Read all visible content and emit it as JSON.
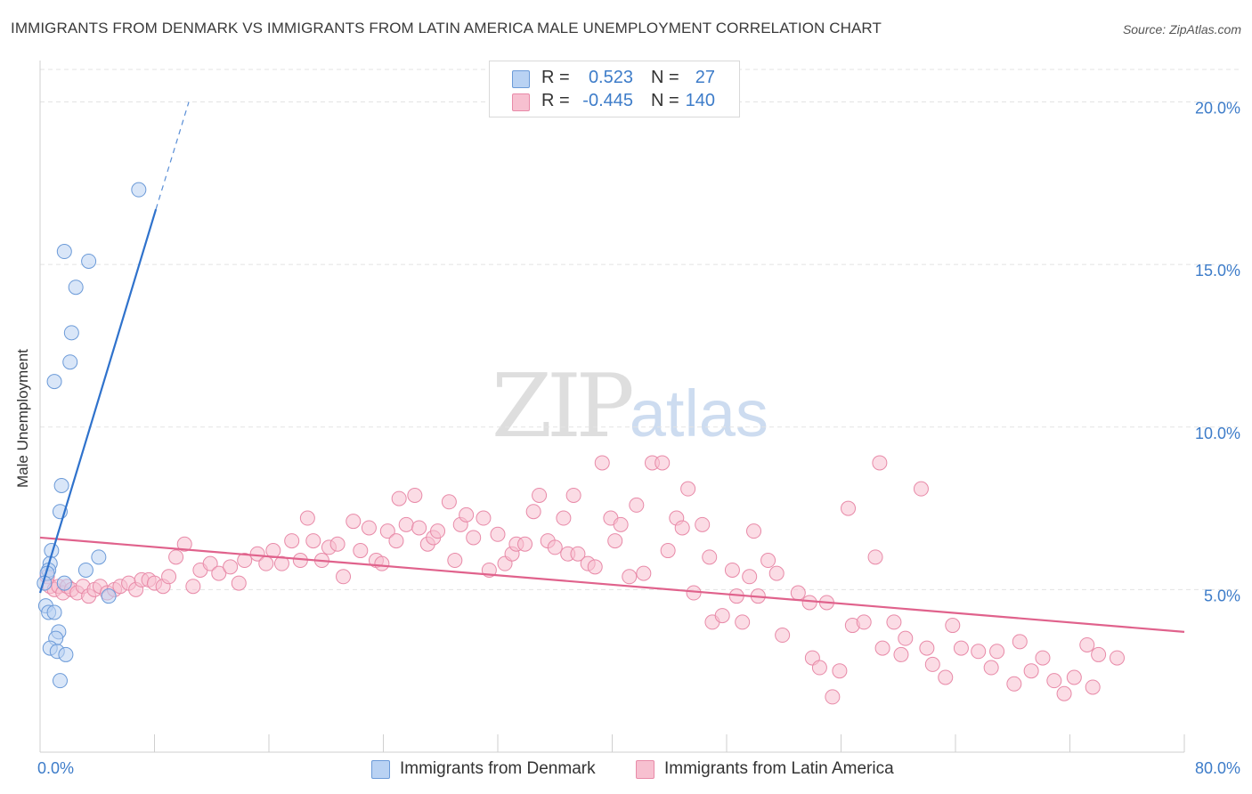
{
  "title": "IMMIGRANTS FROM DENMARK VS IMMIGRANTS FROM LATIN AMERICA MALE UNEMPLOYMENT CORRELATION CHART",
  "source": "Source: ZipAtlas.com",
  "watermark": {
    "zip": "ZIP",
    "atlas": "atlas"
  },
  "legend": {
    "rows": [
      {
        "r_label": "R =",
        "r_value": "0.523",
        "n_label": "N =",
        "n_value": "27"
      },
      {
        "r_label": "R =",
        "r_value": "-0.445",
        "n_label": "N =",
        "n_value": "140"
      }
    ]
  },
  "colors": {
    "denmark_fill": "#b9d2f3",
    "denmark_stroke": "#6b9ad8",
    "denmark_line": "#2f72cc",
    "latam_fill": "#f7c0d0",
    "latam_stroke": "#e88aa8",
    "latam_line": "#e0628c",
    "axis_text": "#3d7cc9",
    "grid": "#e3e3e3"
  },
  "chart_data": {
    "type": "scatter",
    "title": "IMMIGRANTS FROM DENMARK VS IMMIGRANTS FROM LATIN AMERICA MALE UNEMPLOYMENT CORRELATION CHART",
    "xlabel": "",
    "ylabel": "Male Unemployment",
    "xlim": [
      0,
      80
    ],
    "ylim": [
      0,
      21
    ],
    "x_tick_labels": [
      "0.0%",
      "80.0%"
    ],
    "y_ticks": [
      5,
      10,
      15,
      20
    ],
    "y_tick_labels": [
      "5.0%",
      "10.0%",
      "15.0%",
      "20.0%"
    ],
    "grid": true,
    "series": [
      {
        "name": "Immigrants from Denmark",
        "r": 0.523,
        "n": 27,
        "trend": {
          "x0": 0.0,
          "y0": 4.9,
          "x1": 8.1,
          "y1": 16.7,
          "dash_x1": 10.4,
          "dash_y1": 20.0
        },
        "points": [
          [
            6.9,
            17.3
          ],
          [
            1.7,
            15.4
          ],
          [
            3.4,
            15.1
          ],
          [
            2.5,
            14.3
          ],
          [
            2.2,
            12.9
          ],
          [
            2.1,
            12.0
          ],
          [
            1.0,
            11.4
          ],
          [
            1.5,
            8.2
          ],
          [
            1.4,
            7.4
          ],
          [
            0.8,
            6.2
          ],
          [
            4.1,
            6.0
          ],
          [
            0.7,
            5.8
          ],
          [
            3.2,
            5.6
          ],
          [
            0.6,
            5.6
          ],
          [
            0.5,
            5.5
          ],
          [
            0.3,
            5.2
          ],
          [
            1.7,
            5.2
          ],
          [
            4.8,
            4.8
          ],
          [
            0.4,
            4.5
          ],
          [
            0.6,
            4.3
          ],
          [
            1.0,
            4.3
          ],
          [
            1.3,
            3.7
          ],
          [
            1.1,
            3.5
          ],
          [
            0.7,
            3.2
          ],
          [
            1.2,
            3.1
          ],
          [
            1.8,
            3.0
          ],
          [
            1.4,
            2.2
          ]
        ]
      },
      {
        "name": "Immigrants from Latin America",
        "r": -0.445,
        "n": 140,
        "trend": {
          "x0": 0.0,
          "y0": 6.6,
          "x1": 80.0,
          "y1": 3.7
        },
        "points": [
          [
            0.5,
            5.4
          ],
          [
            0.7,
            5.1
          ],
          [
            1.0,
            5.0
          ],
          [
            1.3,
            5.1
          ],
          [
            1.6,
            4.9
          ],
          [
            1.9,
            5.1
          ],
          [
            2.2,
            5.0
          ],
          [
            2.6,
            4.9
          ],
          [
            3.0,
            5.1
          ],
          [
            3.4,
            4.8
          ],
          [
            3.8,
            5.0
          ],
          [
            4.2,
            5.1
          ],
          [
            4.7,
            4.9
          ],
          [
            5.2,
            5.0
          ],
          [
            5.6,
            5.1
          ],
          [
            6.2,
            5.2
          ],
          [
            6.7,
            5.0
          ],
          [
            7.1,
            5.3
          ],
          [
            7.6,
            5.3
          ],
          [
            8.0,
            5.2
          ],
          [
            8.6,
            5.1
          ],
          [
            9.0,
            5.4
          ],
          [
            9.5,
            6.0
          ],
          [
            10.1,
            6.4
          ],
          [
            10.7,
            5.1
          ],
          [
            11.2,
            5.6
          ],
          [
            11.9,
            5.8
          ],
          [
            12.5,
            5.5
          ],
          [
            13.3,
            5.7
          ],
          [
            13.9,
            5.2
          ],
          [
            14.3,
            5.9
          ],
          [
            15.2,
            6.1
          ],
          [
            15.8,
            5.8
          ],
          [
            16.3,
            6.2
          ],
          [
            16.9,
            5.8
          ],
          [
            17.6,
            6.5
          ],
          [
            18.2,
            5.9
          ],
          [
            18.7,
            7.2
          ],
          [
            19.1,
            6.5
          ],
          [
            19.7,
            5.9
          ],
          [
            20.2,
            6.3
          ],
          [
            20.8,
            6.4
          ],
          [
            21.2,
            5.4
          ],
          [
            21.9,
            7.1
          ],
          [
            22.4,
            6.2
          ],
          [
            23.0,
            6.9
          ],
          [
            23.5,
            5.9
          ],
          [
            23.9,
            5.8
          ],
          [
            24.3,
            6.8
          ],
          [
            24.9,
            6.5
          ],
          [
            25.1,
            7.8
          ],
          [
            25.6,
            7.0
          ],
          [
            26.2,
            7.9
          ],
          [
            26.5,
            6.9
          ],
          [
            27.1,
            6.4
          ],
          [
            27.5,
            6.6
          ],
          [
            27.8,
            6.8
          ],
          [
            28.6,
            7.7
          ],
          [
            29.0,
            5.9
          ],
          [
            29.4,
            7.0
          ],
          [
            29.8,
            7.3
          ],
          [
            30.3,
            6.6
          ],
          [
            31.0,
            7.2
          ],
          [
            31.4,
            5.6
          ],
          [
            32.0,
            6.7
          ],
          [
            32.5,
            5.8
          ],
          [
            33.0,
            6.1
          ],
          [
            33.3,
            6.4
          ],
          [
            33.9,
            6.4
          ],
          [
            34.5,
            7.4
          ],
          [
            34.9,
            7.9
          ],
          [
            35.5,
            6.5
          ],
          [
            36.0,
            6.3
          ],
          [
            36.6,
            7.2
          ],
          [
            36.9,
            6.1
          ],
          [
            37.3,
            7.9
          ],
          [
            37.6,
            6.1
          ],
          [
            38.3,
            5.8
          ],
          [
            38.8,
            5.7
          ],
          [
            39.3,
            8.9
          ],
          [
            39.9,
            7.2
          ],
          [
            40.2,
            6.5
          ],
          [
            40.6,
            7.0
          ],
          [
            41.2,
            5.4
          ],
          [
            41.7,
            7.6
          ],
          [
            42.2,
            5.5
          ],
          [
            42.8,
            8.9
          ],
          [
            43.5,
            8.9
          ],
          [
            43.9,
            6.2
          ],
          [
            44.5,
            7.2
          ],
          [
            44.9,
            6.9
          ],
          [
            45.3,
            8.1
          ],
          [
            45.7,
            4.9
          ],
          [
            46.3,
            7.0
          ],
          [
            46.8,
            6.0
          ],
          [
            47.0,
            4.0
          ],
          [
            47.7,
            4.2
          ],
          [
            48.4,
            5.6
          ],
          [
            48.7,
            4.8
          ],
          [
            49.1,
            4.0
          ],
          [
            49.9,
            6.8
          ],
          [
            49.6,
            5.4
          ],
          [
            50.2,
            4.8
          ],
          [
            50.9,
            5.9
          ],
          [
            51.5,
            5.5
          ],
          [
            51.9,
            3.6
          ],
          [
            53.0,
            4.9
          ],
          [
            53.8,
            4.6
          ],
          [
            54.0,
            2.9
          ],
          [
            54.5,
            2.6
          ],
          [
            55.0,
            4.6
          ],
          [
            55.4,
            1.7
          ],
          [
            55.9,
            2.5
          ],
          [
            56.5,
            7.5
          ],
          [
            56.8,
            3.9
          ],
          [
            57.6,
            4.0
          ],
          [
            58.4,
            6.0
          ],
          [
            58.7,
            8.9
          ],
          [
            58.9,
            3.2
          ],
          [
            59.7,
            4.0
          ],
          [
            60.2,
            3.0
          ],
          [
            60.5,
            3.5
          ],
          [
            61.6,
            8.1
          ],
          [
            62.0,
            3.2
          ],
          [
            62.4,
            2.7
          ],
          [
            63.3,
            2.3
          ],
          [
            63.8,
            3.9
          ],
          [
            64.4,
            3.2
          ],
          [
            65.6,
            3.1
          ],
          [
            66.5,
            2.6
          ],
          [
            66.9,
            3.1
          ],
          [
            68.1,
            2.1
          ],
          [
            68.5,
            3.4
          ],
          [
            69.3,
            2.5
          ],
          [
            70.1,
            2.9
          ],
          [
            70.9,
            2.2
          ],
          [
            71.6,
            1.8
          ],
          [
            72.3,
            2.3
          ],
          [
            73.2,
            3.3
          ],
          [
            73.6,
            2.0
          ],
          [
            74.0,
            3.0
          ],
          [
            75.3,
            2.9
          ]
        ]
      }
    ]
  },
  "bottom_legend": [
    {
      "label": "Immigrants from Denmark"
    },
    {
      "label": "Immigrants from Latin America"
    }
  ]
}
